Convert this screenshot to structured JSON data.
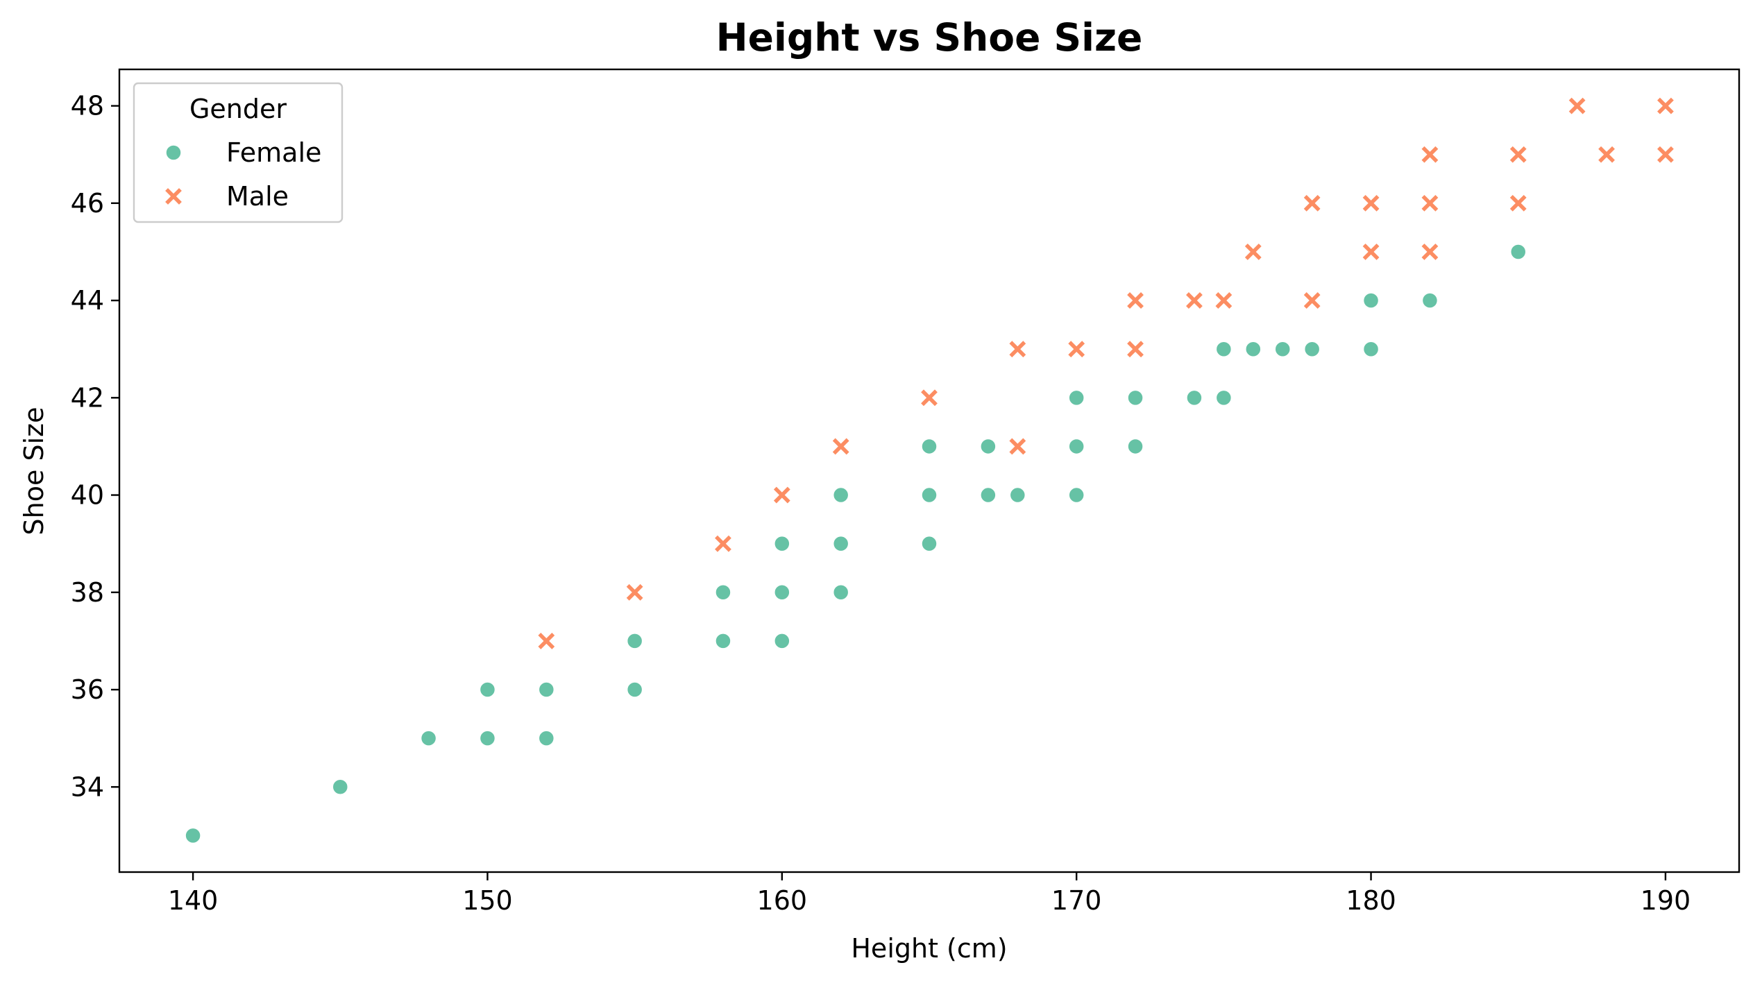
{
  "chart_data": {
    "type": "scatter",
    "title": "Height vs Shoe Size",
    "xlabel": "Height (cm)",
    "ylabel": "Shoe Size",
    "xlim": [
      137.5,
      192.5
    ],
    "ylim": [
      32.25,
      48.75
    ],
    "xticks": [
      140,
      150,
      160,
      170,
      180,
      190
    ],
    "yticks": [
      34,
      36,
      38,
      40,
      42,
      44,
      46,
      48
    ],
    "grid": false,
    "legend": {
      "title": "Gender",
      "placement": "upper-left"
    },
    "series": [
      {
        "name": "Female",
        "marker": "circle",
        "color": "#66c2a5",
        "points": [
          [
            140,
            33
          ],
          [
            145,
            34
          ],
          [
            148,
            35
          ],
          [
            150,
            35
          ],
          [
            150,
            36
          ],
          [
            152,
            35
          ],
          [
            152,
            36
          ],
          [
            155,
            36
          ],
          [
            155,
            37
          ],
          [
            158,
            37
          ],
          [
            158,
            38
          ],
          [
            160,
            37
          ],
          [
            160,
            38
          ],
          [
            160,
            39
          ],
          [
            162,
            38
          ],
          [
            162,
            39
          ],
          [
            162,
            40
          ],
          [
            165,
            39
          ],
          [
            165,
            40
          ],
          [
            165,
            41
          ],
          [
            167,
            40
          ],
          [
            167,
            41
          ],
          [
            168,
            40
          ],
          [
            170,
            40
          ],
          [
            170,
            41
          ],
          [
            170,
            42
          ],
          [
            172,
            41
          ],
          [
            172,
            42
          ],
          [
            174,
            42
          ],
          [
            175,
            42
          ],
          [
            175,
            43
          ],
          [
            176,
            43
          ],
          [
            177,
            43
          ],
          [
            178,
            43
          ],
          [
            180,
            43
          ],
          [
            180,
            44
          ],
          [
            182,
            44
          ],
          [
            185,
            45
          ]
        ]
      },
      {
        "name": "Male",
        "marker": "x",
        "color": "#fc8d62",
        "points": [
          [
            152,
            37
          ],
          [
            155,
            38
          ],
          [
            158,
            39
          ],
          [
            160,
            40
          ],
          [
            162,
            41
          ],
          [
            165,
            42
          ],
          [
            168,
            41
          ],
          [
            168,
            43
          ],
          [
            170,
            43
          ],
          [
            172,
            43
          ],
          [
            172,
            44
          ],
          [
            174,
            44
          ],
          [
            175,
            44
          ],
          [
            176,
            45
          ],
          [
            178,
            44
          ],
          [
            178,
            46
          ],
          [
            180,
            45
          ],
          [
            180,
            46
          ],
          [
            182,
            45
          ],
          [
            182,
            46
          ],
          [
            182,
            47
          ],
          [
            185,
            46
          ],
          [
            185,
            47
          ],
          [
            187,
            48
          ],
          [
            188,
            47
          ],
          [
            190,
            47
          ],
          [
            190,
            48
          ]
        ]
      }
    ]
  }
}
